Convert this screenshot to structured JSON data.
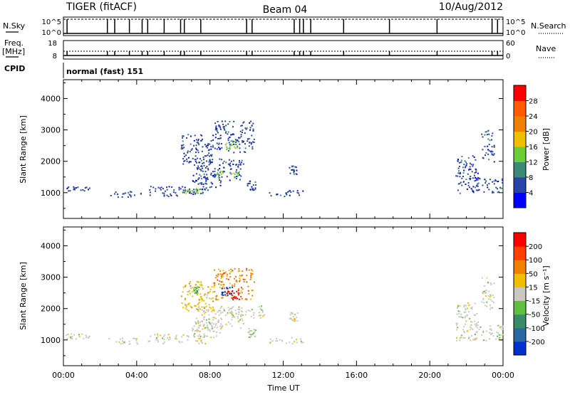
{
  "header": {
    "radar": "TIGER (fitACF)",
    "beam": "Beam 04",
    "date": "10/Aug/2012"
  },
  "strips": {
    "nsky": {
      "label": "N.Sky",
      "tick_top": "10^5",
      "tick_bottom": "10^0"
    },
    "nsearch": {
      "label": "N.Search",
      "tick_top": "10^5",
      "tick_bottom": "10^0"
    },
    "freq": {
      "label_line1": "Freq.",
      "label_line2": "[MHz]",
      "tick_top": "18",
      "tick_bottom": "8"
    },
    "nave": {
      "label": "Nave",
      "tick_top": "60",
      "tick_bottom": "0"
    },
    "cpid": {
      "label": "CPID",
      "value": "normal (fast) 151"
    }
  },
  "chart_data": [
    {
      "type": "heatmap",
      "panel": "power",
      "xlabel": "",
      "ylabel": "Slant Range [km]",
      "xlim": [
        0,
        24
      ],
      "ylim": [
        180,
        4600
      ],
      "yticks": [
        1000,
        2000,
        3000,
        4000
      ],
      "colorbar": {
        "label": "Power [dB]",
        "ticks": [
          "4",
          "8",
          "12",
          "16",
          "20",
          "24",
          "28"
        ],
        "colors": [
          "#0000ff",
          "#2a43a8",
          "#3a8a76",
          "#6ccc3a",
          "#f0c000",
          "#f08000",
          "#ff5a00",
          "#ff0000"
        ]
      },
      "echo_regions": [
        {
          "t0": 0.0,
          "t1": 1.4,
          "r0": 1050,
          "r1": 1220,
          "level": 1
        },
        {
          "t0": 2.4,
          "t1": 4.2,
          "r0": 880,
          "r1": 1080,
          "level": 1
        },
        {
          "t0": 4.6,
          "t1": 7.8,
          "r0": 900,
          "r1": 1220,
          "level": 1
        },
        {
          "t0": 6.4,
          "t1": 7.4,
          "r0": 1000,
          "r1": 1150,
          "level": 3
        },
        {
          "t0": 7.0,
          "t1": 8.6,
          "r0": 1100,
          "r1": 1600,
          "level": 1
        },
        {
          "t0": 7.2,
          "t1": 9.8,
          "r0": 1400,
          "r1": 2100,
          "level": 1
        },
        {
          "t0": 8.2,
          "t1": 9.6,
          "r0": 1500,
          "r1": 1700,
          "level": 3
        },
        {
          "t0": 6.4,
          "t1": 8.2,
          "r0": 1900,
          "r1": 2900,
          "level": 1
        },
        {
          "t0": 8.2,
          "t1": 10.4,
          "r0": 2300,
          "r1": 3300,
          "level": 1
        },
        {
          "t0": 8.8,
          "t1": 9.5,
          "r0": 2400,
          "r1": 2700,
          "level": 3
        },
        {
          "t0": 10.0,
          "t1": 10.5,
          "r0": 1100,
          "r1": 1400,
          "level": 1
        },
        {
          "t0": 11.2,
          "t1": 13.2,
          "r0": 900,
          "r1": 1100,
          "level": 1
        },
        {
          "t0": 12.3,
          "t1": 12.8,
          "r0": 1600,
          "r1": 1900,
          "level": 1
        },
        {
          "t0": 21.4,
          "t1": 22.6,
          "r0": 1000,
          "r1": 2200,
          "level": 1
        },
        {
          "t0": 22.4,
          "t1": 24.0,
          "r0": 1000,
          "r1": 1500,
          "level": 1
        },
        {
          "t0": 22.8,
          "t1": 23.5,
          "r0": 2000,
          "r1": 3000,
          "level": 1
        }
      ]
    },
    {
      "type": "heatmap",
      "panel": "velocity",
      "xlabel": "Time UT",
      "ylabel": "Slant Range [km]",
      "xlim": [
        0,
        24
      ],
      "ylim": [
        180,
        4600
      ],
      "xticks": [
        "00:00",
        "04:00",
        "08:00",
        "12:00",
        "16:00",
        "20:00",
        "00:00"
      ],
      "yticks": [
        1000,
        2000,
        3000,
        4000
      ],
      "colorbar": {
        "label": "Velocity [m s⁻¹]",
        "ticks": [
          "200",
          "100",
          "50",
          "15",
          "-15",
          "-50",
          "-100",
          "-200"
        ],
        "colors": [
          "#0030d0",
          "#2a6aa0",
          "#3a8a6a",
          "#60c040",
          "#c8c8c0",
          "#f0c000",
          "#f08000",
          "#ff4000",
          "#ff0000"
        ]
      },
      "echo_regions": [
        {
          "t0": 0.0,
          "t1": 1.4,
          "r0": 1050,
          "r1": 1220,
          "level": 4
        },
        {
          "t0": 2.4,
          "t1": 4.2,
          "r0": 880,
          "r1": 1080,
          "level": 4
        },
        {
          "t0": 4.6,
          "t1": 7.8,
          "r0": 900,
          "r1": 1220,
          "level": 4
        },
        {
          "t0": 7.0,
          "t1": 8.6,
          "r0": 1100,
          "r1": 1600,
          "level": 4
        },
        {
          "t0": 7.2,
          "t1": 9.8,
          "r0": 1400,
          "r1": 2100,
          "level": 4
        },
        {
          "t0": 9.0,
          "t1": 11.0,
          "r0": 1700,
          "r1": 2100,
          "level": 4
        },
        {
          "t0": 6.4,
          "t1": 8.2,
          "r0": 1900,
          "r1": 2900,
          "level": 5
        },
        {
          "t0": 8.2,
          "t1": 10.4,
          "r0": 2300,
          "r1": 3300,
          "level": 6
        },
        {
          "t0": 8.6,
          "t1": 9.4,
          "r0": 2400,
          "r1": 2700,
          "level": 0
        },
        {
          "t0": 8.9,
          "t1": 9.6,
          "r0": 2300,
          "r1": 2600,
          "level": 8
        },
        {
          "t0": 7.0,
          "t1": 7.4,
          "r0": 2500,
          "r1": 2700,
          "level": 3
        },
        {
          "t0": 10.0,
          "t1": 10.5,
          "r0": 1100,
          "r1": 1400,
          "level": 4
        },
        {
          "t0": 11.2,
          "t1": 13.2,
          "r0": 900,
          "r1": 1100,
          "level": 4
        },
        {
          "t0": 12.3,
          "t1": 12.8,
          "r0": 1600,
          "r1": 1900,
          "level": 4
        },
        {
          "t0": 21.4,
          "t1": 22.6,
          "r0": 1000,
          "r1": 2200,
          "level": 4
        },
        {
          "t0": 22.4,
          "t1": 24.0,
          "r0": 1000,
          "r1": 1500,
          "level": 4
        },
        {
          "t0": 22.8,
          "t1": 23.5,
          "r0": 2000,
          "r1": 3000,
          "level": 4
        }
      ]
    }
  ]
}
